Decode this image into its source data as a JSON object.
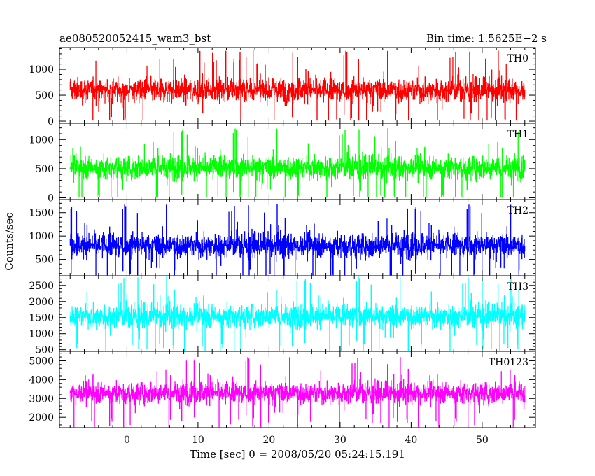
{
  "chart_data": {
    "type": "line",
    "title": "ae080520052415_wam3_bst",
    "bin_time_label": "Bin time: 1.5625E−2 s",
    "xlabel": "Time [sec] 0 = 2008/05/20 05:24:15.191",
    "ylabel": "Counts/sec",
    "xlim": [
      -9.5,
      57.5
    ],
    "data_xrange": [
      -8.0,
      56.0
    ],
    "x_ticks": [
      0,
      10,
      20,
      30,
      40,
      50
    ],
    "x_tick_labels": [
      "0",
      "10",
      "20",
      "30",
      "40",
      "50"
    ],
    "panels": [
      {
        "name": "TH0",
        "color": "#ff0000",
        "ylim": [
          -40,
          1420
        ],
        "y_ticks": [
          0,
          500,
          1000
        ],
        "y_tick_labels": [
          "0",
          "500",
          "1000"
        ],
        "mean": 600,
        "spread": 260,
        "min": 20,
        "max": 1400
      },
      {
        "name": "TH1",
        "color": "#00ff00",
        "ylim": [
          -30,
          1280
        ],
        "y_ticks": [
          0,
          500,
          1000
        ],
        "y_tick_labels": [
          "0",
          "500",
          "1000"
        ],
        "mean": 520,
        "spread": 230,
        "min": 20,
        "max": 1260
      },
      {
        "name": "TH2",
        "color": "#0000ff",
        "ylim": [
          150,
          1780
        ],
        "y_ticks": [
          500,
          1000,
          1500
        ],
        "y_tick_labels": [
          "500",
          "1000",
          "1500"
        ],
        "mean": 800,
        "spread": 300,
        "min": 170,
        "max": 1760
      },
      {
        "name": "TH3",
        "color": "#00ffff",
        "ylim": [
          450,
          2800
        ],
        "y_ticks": [
          500,
          1000,
          1500,
          2000,
          2500
        ],
        "y_tick_labels": [
          "500",
          "1000",
          "1500",
          "2000",
          "2500"
        ],
        "mean": 1550,
        "spread": 420,
        "min": 480,
        "max": 2780
      },
      {
        "name": "TH0123",
        "color": "#ff00ff",
        "ylim": [
          1450,
          5500
        ],
        "y_ticks": [
          2000,
          3000,
          4000,
          5000
        ],
        "y_tick_labels": [
          "2000",
          "3000",
          "4000",
          "5000"
        ],
        "mean": 3300,
        "spread": 650,
        "min": 1500,
        "max": 5300
      }
    ]
  }
}
